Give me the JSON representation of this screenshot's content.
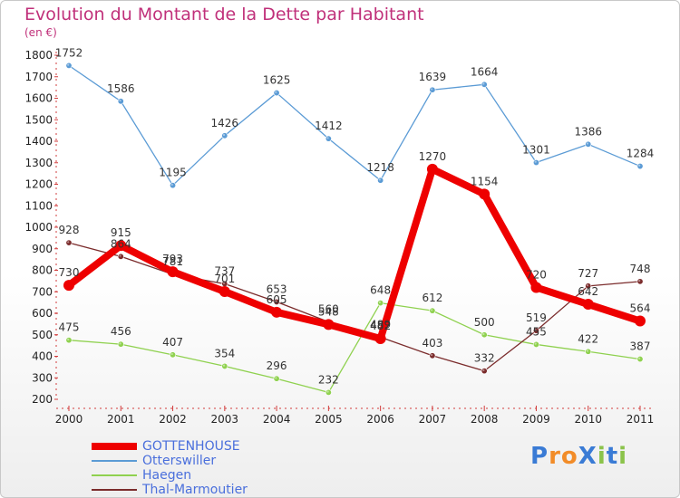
{
  "header": {
    "title": "Evolution du Montant de la Dette par Habitant",
    "unit": "(en €)"
  },
  "logo": {
    "text": "ProXiti",
    "letters": [
      "P",
      "r",
      "o",
      "X",
      "i",
      "t",
      "i"
    ],
    "colors": [
      "#3a7bd5",
      "#f28c28",
      "#f28c28",
      "#3a7bd5",
      "#8bc34a",
      "#3a7bd5",
      "#8bc34a"
    ]
  },
  "chart_data": {
    "type": "line",
    "title": "Evolution du Montant de la Dette par Habitant",
    "ylabel": "(en €)",
    "xlabel": "",
    "x": [
      "2000",
      "2001",
      "2002",
      "2003",
      "2004",
      "2005",
      "2006",
      "2007",
      "2008",
      "2009",
      "2010",
      "2011"
    ],
    "ylim": [
      200,
      1800
    ],
    "yticks": [
      200,
      300,
      400,
      500,
      600,
      700,
      800,
      900,
      1000,
      1100,
      1200,
      1300,
      1400,
      1500,
      1600,
      1700,
      1800
    ],
    "grid": false,
    "legend_position": "bottom-left",
    "series": [
      {
        "name": "GOTTENHOUSE",
        "color": "#ee0000",
        "emphasis": true,
        "values": [
          730,
          915,
          793,
          701,
          605,
          548,
          482,
          1270,
          1154,
          720,
          642,
          564
        ]
      },
      {
        "name": "Otterswiller",
        "color": "#5b9bd5",
        "emphasis": false,
        "values": [
          1752,
          1586,
          1195,
          1426,
          1625,
          1412,
          1218,
          1639,
          1664,
          1301,
          1386,
          1284
        ]
      },
      {
        "name": "Haegen",
        "color": "#8fd14f",
        "emphasis": false,
        "values": [
          475,
          456,
          407,
          354,
          296,
          232,
          648,
          612,
          500,
          455,
          422,
          387
        ]
      },
      {
        "name": "Thal-Marmoutier",
        "color": "#7b2c2c",
        "emphasis": false,
        "values": [
          928,
          864,
          781,
          737,
          653,
          560,
          489,
          403,
          332,
          519,
          727,
          748
        ]
      }
    ]
  }
}
